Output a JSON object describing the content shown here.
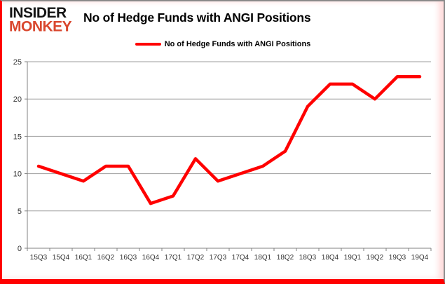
{
  "logo": {
    "line1": "INSIDER",
    "line2": "MONKEY"
  },
  "title": "No of Hedge Funds with ANGI Positions",
  "legend": {
    "label": "No of Hedge Funds with ANGI Positions"
  },
  "chart_data": {
    "type": "line",
    "title": "No of Hedge Funds with ANGI Positions",
    "categories": [
      "15Q3",
      "15Q4",
      "16Q1",
      "16Q2",
      "16Q3",
      "16Q4",
      "17Q1",
      "17Q2",
      "17Q3",
      "17Q4",
      "18Q1",
      "18Q2",
      "18Q3",
      "18Q4",
      "19Q1",
      "19Q2",
      "19Q3",
      "19Q4"
    ],
    "series": [
      {
        "name": "No of Hedge Funds with ANGI Positions",
        "color": "#ff0000",
        "values": [
          11,
          10,
          9,
          11,
          11,
          6,
          7,
          12,
          9,
          10,
          11,
          13,
          19,
          22,
          22,
          20,
          23,
          23
        ]
      }
    ],
    "xlabel": "",
    "ylabel": "",
    "ylim": [
      0,
      25
    ],
    "yticks": [
      0,
      5,
      10,
      15,
      20,
      25
    ],
    "grid": true,
    "legend_position": "top"
  },
  "colors": {
    "line": "#ff0000",
    "grid": "#9e9e9e",
    "axis": "#808080",
    "tick_label": "#333333",
    "title_text": "#000000",
    "logo_black": "#141414",
    "logo_red": "#d9472e",
    "border_red": "#ff0000",
    "border_gray": "#8a8a8a"
  }
}
